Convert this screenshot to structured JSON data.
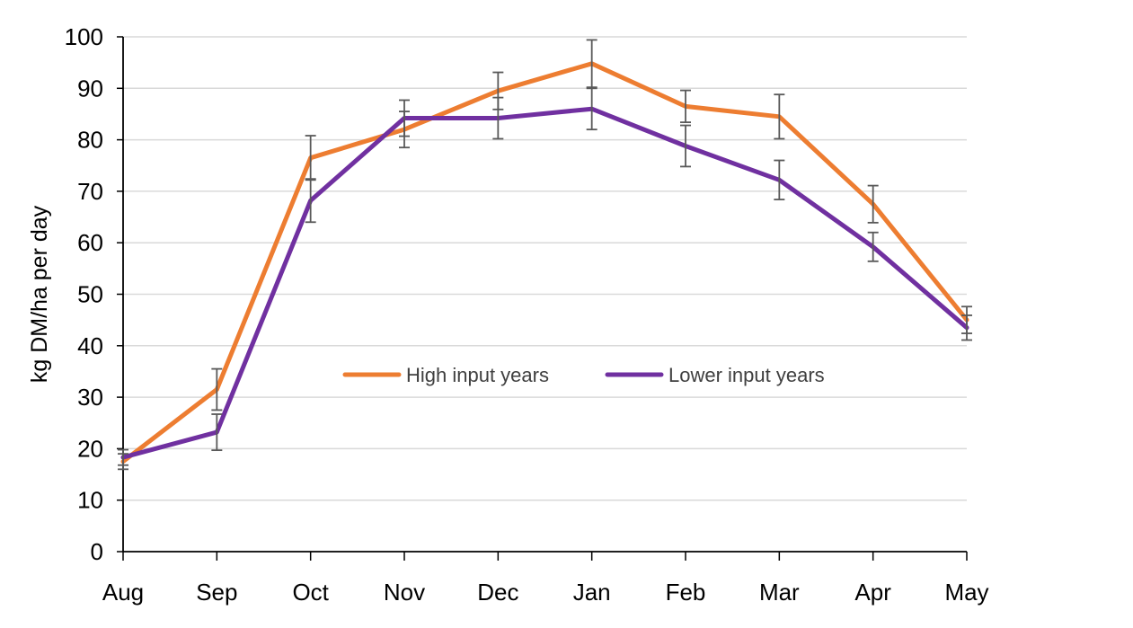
{
  "chart_data": {
    "type": "line",
    "title": "",
    "xlabel": "",
    "ylabel": "kg DM/ha per day",
    "categories": [
      "Aug",
      "Sep",
      "Oct",
      "Nov",
      "Dec",
      "Jan",
      "Feb",
      "Mar",
      "Apr",
      "May"
    ],
    "ylim": [
      0,
      100
    ],
    "yticks": [
      "0",
      "10",
      "20",
      "30",
      "40",
      "50",
      "60",
      "70",
      "80",
      "90",
      "100"
    ],
    "grid": true,
    "legend_position": "center",
    "series": [
      {
        "name": "High input years",
        "color": "#ED7D31",
        "values": [
          17.5,
          31.5,
          76.5,
          82,
          89.5,
          94.8,
          86.5,
          84.5,
          67.5,
          45
        ],
        "error": [
          1.5,
          4,
          4.3,
          3.5,
          3.6,
          4.6,
          3.1,
          4.3,
          3.6,
          2.6
        ]
      },
      {
        "name": "Lower input years",
        "color": "#7030A0",
        "values": [
          18.3,
          23.2,
          68.2,
          84.2,
          84.2,
          86,
          78.8,
          72.2,
          59.2,
          43.5
        ],
        "error": [
          1.5,
          3.5,
          4.2,
          3.5,
          4,
          4,
          4,
          3.8,
          2.8,
          2.4
        ]
      }
    ]
  }
}
